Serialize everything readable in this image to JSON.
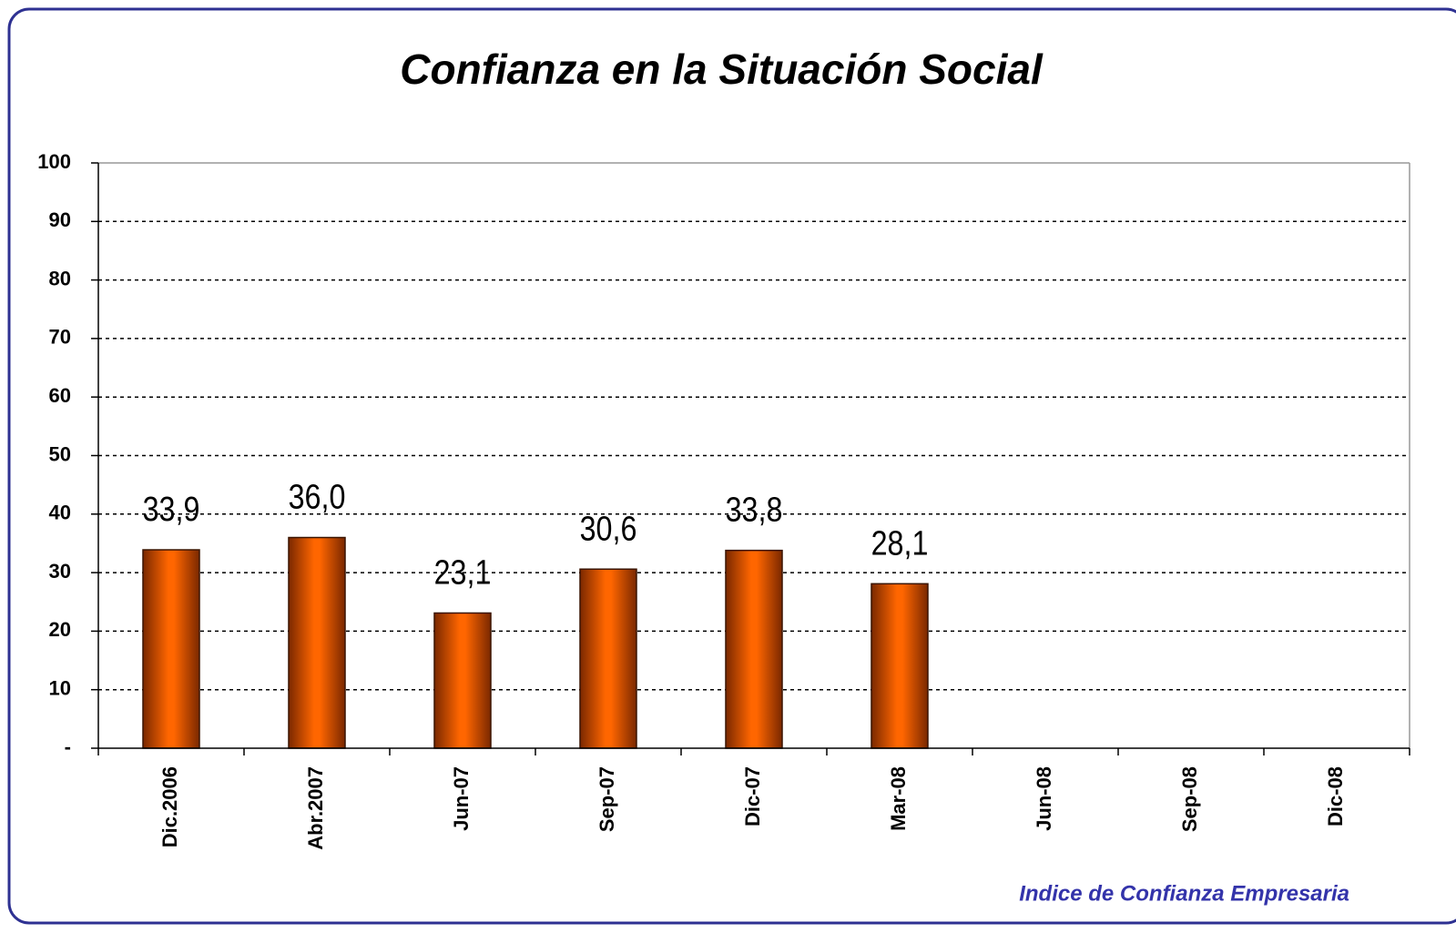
{
  "chart_data": {
    "type": "bar",
    "title": "Confianza en la Situación Social",
    "categories": [
      "Dic.2006",
      "Abr.2007",
      "Jun-07",
      "Sep-07",
      "Dic-07",
      "Mar-08",
      "Jun-08",
      "Sep-08",
      "Dic-08"
    ],
    "values": [
      33.9,
      36.0,
      23.1,
      30.6,
      33.8,
      28.1,
      null,
      null,
      null
    ],
    "value_labels": [
      "33,9",
      "36,0",
      "23,1",
      "30,6",
      "33,8",
      "28,1",
      null,
      null,
      null
    ],
    "color": "#ff6600",
    "ylim": [
      0,
      100
    ],
    "yticks": [
      {
        "value": 0,
        "label": "-"
      },
      10,
      20,
      30,
      40,
      50,
      60,
      70,
      80,
      90,
      100
    ],
    "grid": true,
    "source": "Indice de Confianza Empresaria"
  }
}
